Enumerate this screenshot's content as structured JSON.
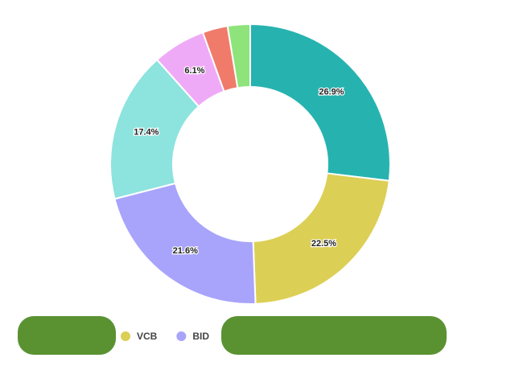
{
  "chart_data": {
    "type": "donut",
    "categories": [
      null,
      "VCB",
      "BID",
      null,
      null,
      null,
      null
    ],
    "values": [
      26.9,
      22.5,
      21.6,
      17.4,
      6.1,
      2.9,
      2.6
    ],
    "value_labels": [
      "26.9%",
      "22.5%",
      "21.6%",
      "17.4%",
      "6.1%",
      null,
      null
    ],
    "colors": [
      "#26b3b0",
      "#dccf55",
      "#a8a4fb",
      "#8de3de",
      "#efaaf7",
      "#f07b6a",
      "#8ee47b"
    ]
  }
}
